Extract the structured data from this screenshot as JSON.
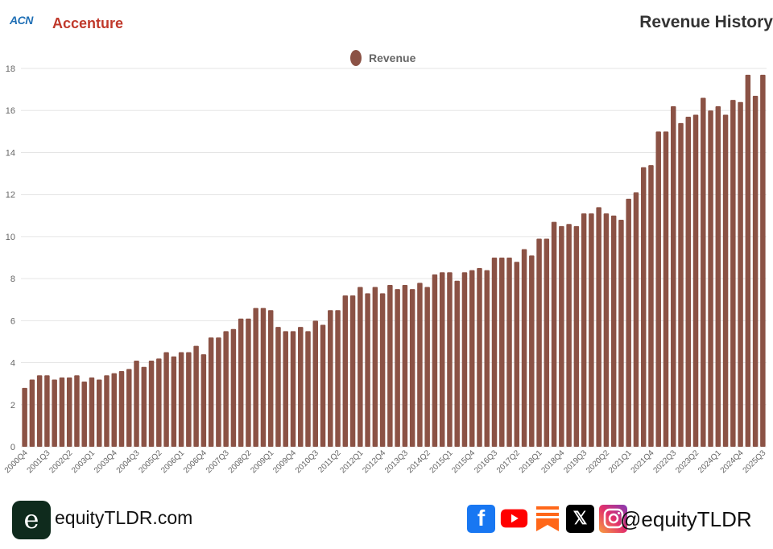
{
  "header": {
    "ticker": "ACN",
    "company": "Accenture",
    "title": "Revenue History"
  },
  "footer": {
    "logo_letter": "e",
    "site": "equityTLDR.com",
    "handle": "@equityTLDR",
    "icons": [
      "facebook-icon",
      "youtube-icon",
      "substack-icon",
      "x-icon",
      "instagram-icon"
    ],
    "icon_letters": {
      "facebook": "f",
      "x": "𝕏"
    }
  },
  "colors": {
    "bar": "#8b5245",
    "company": "#c0392b",
    "ticker": "#1f6fb5",
    "grid": "#e5e5e5",
    "axis_text": "#666666"
  },
  "chart_data": {
    "type": "bar",
    "title": "Revenue History",
    "legend": [
      "Revenue"
    ],
    "legend_position": "top-center",
    "xlabel": "",
    "ylabel": "",
    "ylim": [
      0,
      18
    ],
    "yticks": [
      0,
      2,
      4,
      6,
      8,
      10,
      12,
      14,
      16,
      18
    ],
    "grid": true,
    "categories": [
      "2000Q4",
      "2001Q1",
      "2001Q2",
      "2001Q3",
      "2001Q4",
      "2002Q1",
      "2002Q2",
      "2002Q3",
      "2002Q4",
      "2003Q1",
      "2003Q2",
      "2003Q3",
      "2003Q4",
      "2004Q1",
      "2004Q2",
      "2004Q3",
      "2004Q4",
      "2005Q1",
      "2005Q2",
      "2005Q3",
      "2005Q4",
      "2006Q1",
      "2006Q2",
      "2006Q3",
      "2006Q4",
      "2007Q1",
      "2007Q2",
      "2007Q3",
      "2007Q4",
      "2008Q1",
      "2008Q2",
      "2008Q3",
      "2008Q4",
      "2009Q1",
      "2009Q2",
      "2009Q3",
      "2009Q4",
      "2010Q1",
      "2010Q2",
      "2010Q3",
      "2010Q4",
      "2011Q1",
      "2011Q2",
      "2011Q3",
      "2011Q4",
      "2012Q1",
      "2012Q2",
      "2012Q3",
      "2012Q4",
      "2013Q1",
      "2013Q2",
      "2013Q3",
      "2013Q4",
      "2014Q1",
      "2014Q2",
      "2014Q3",
      "2014Q4",
      "2015Q1",
      "2015Q2",
      "2015Q3",
      "2015Q4",
      "2016Q1",
      "2016Q2",
      "2016Q3",
      "2016Q4",
      "2017Q1",
      "2017Q2",
      "2017Q3",
      "2017Q4",
      "2018Q1",
      "2018Q2",
      "2018Q3",
      "2018Q4",
      "2019Q1",
      "2019Q2",
      "2019Q3",
      "2019Q4",
      "2020Q1",
      "2020Q2",
      "2020Q3",
      "2020Q4",
      "2021Q1",
      "2021Q2",
      "2021Q3",
      "2021Q4",
      "2022Q1",
      "2022Q2",
      "2022Q3",
      "2022Q4",
      "2023Q1",
      "2023Q2",
      "2023Q3",
      "2023Q4",
      "2024Q1",
      "2024Q2",
      "2024Q3",
      "2024Q4",
      "2025Q1",
      "2025Q2",
      "2025Q3"
    ],
    "series": [
      {
        "name": "Revenue",
        "values": [
          2.8,
          3.2,
          3.4,
          3.4,
          3.2,
          3.3,
          3.3,
          3.4,
          3.1,
          3.3,
          3.2,
          3.4,
          3.5,
          3.6,
          3.7,
          4.1,
          3.8,
          4.1,
          4.2,
          4.5,
          4.3,
          4.5,
          4.5,
          4.8,
          4.4,
          5.2,
          5.2,
          5.5,
          5.6,
          6.1,
          6.1,
          6.6,
          6.6,
          6.5,
          5.7,
          5.5,
          5.5,
          5.7,
          5.5,
          6.0,
          5.8,
          6.5,
          6.5,
          7.2,
          7.2,
          7.6,
          7.3,
          7.6,
          7.3,
          7.7,
          7.5,
          7.7,
          7.5,
          7.8,
          7.6,
          8.2,
          8.3,
          8.3,
          7.9,
          8.3,
          8.4,
          8.5,
          8.4,
          9.0,
          9.0,
          9.0,
          8.8,
          9.4,
          9.1,
          9.9,
          9.9,
          10.7,
          10.5,
          10.6,
          10.5,
          11.1,
          11.1,
          11.4,
          11.1,
          11.0,
          10.8,
          11.8,
          12.1,
          13.3,
          13.4,
          15.0,
          15.0,
          16.2,
          15.4,
          15.7,
          15.8,
          16.6,
          16.0,
          16.2,
          15.8,
          16.5,
          16.4,
          17.7,
          16.7,
          17.7
        ]
      }
    ],
    "xtick_labels": [
      "2000Q4",
      "2001Q3",
      "2002Q2",
      "2003Q1",
      "2003Q4",
      "2004Q3",
      "2005Q2",
      "2006Q1",
      "2006Q4",
      "2007Q3",
      "2008Q2",
      "2009Q1",
      "2009Q4",
      "2010Q3",
      "2011Q2",
      "2012Q1",
      "2012Q4",
      "2013Q3",
      "2014Q2",
      "2015Q1",
      "2015Q4",
      "2016Q3",
      "2017Q2",
      "2018Q1",
      "2018Q4",
      "2019Q3",
      "2020Q2",
      "2021Q1",
      "2021Q4",
      "2022Q3",
      "2023Q2",
      "2024Q1",
      "2024Q4",
      "2025Q3"
    ]
  }
}
